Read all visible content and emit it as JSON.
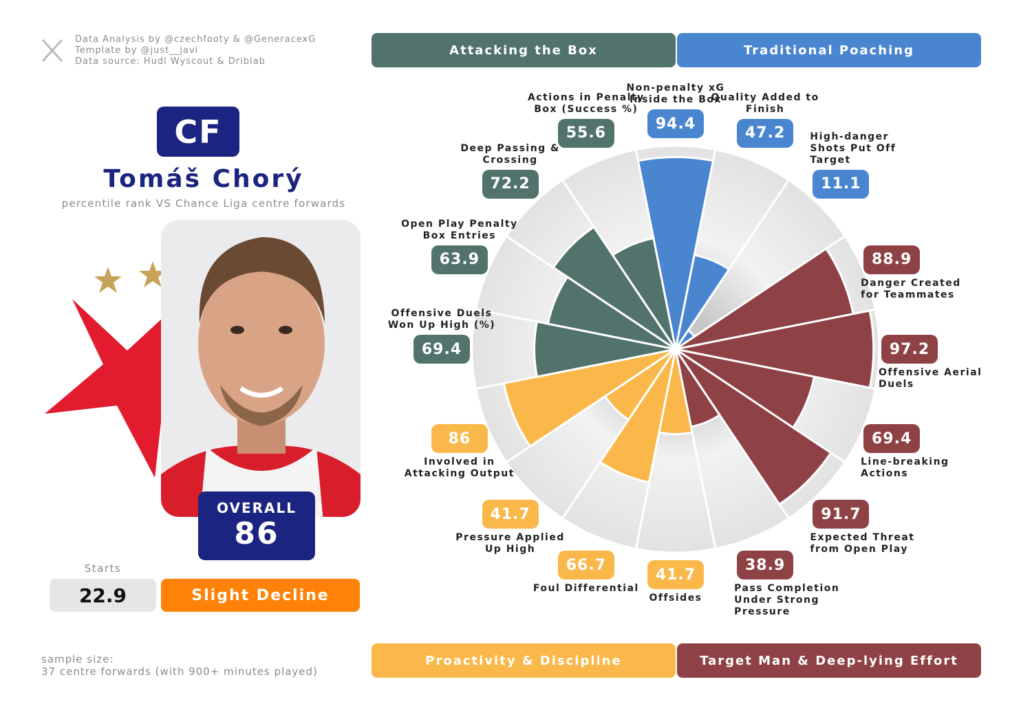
{
  "credits": [
    "Data Analysis by @czechfooty & @GeneracexG",
    "Template by @just__javi",
    "Data source: Hudl Wyscout & Driblab"
  ],
  "position": "CF",
  "player": "Tomáš Chorý",
  "subtitle": "percentile rank VS Chance Liga centre forwards",
  "overall_label": "OVERALL",
  "overall": 86,
  "starts_label": "Starts",
  "starts": 22.9,
  "trend": "Slight Decline",
  "sample_size": [
    "sample size:",
    "37 centre forwards (with 900+ minutes played)"
  ],
  "chart_data": {
    "type": "pizza",
    "rlim": [
      0,
      100
    ],
    "series": [
      {
        "name": "Traditional Poaching",
        "color": "#4a86d0",
        "categories": [
          "Non-penalty xG Inside the Box",
          "Quality Added to Finish",
          "High-danger Shots Put Off Target"
        ],
        "values": [
          94.4,
          47.2,
          11.1
        ]
      },
      {
        "name": "Target Man & Deep-lying Effort",
        "color": "#8e4245",
        "categories": [
          "Danger Created for Teammates",
          "Offensive Aerial Duels",
          "Line-breaking Actions",
          "Expected Threat from Open Play",
          "Pass Completion Under Strong Pressure"
        ],
        "values": [
          88.9,
          97.2,
          69.4,
          91.7,
          38.9
        ]
      },
      {
        "name": "Proactivity & Discipline",
        "color": "#fbb84a",
        "categories": [
          "Offsides",
          "Foul Differential",
          "Pressure Applied Up High",
          "Involved in Attacking Output"
        ],
        "values": [
          41.7,
          66.7,
          41.7,
          86
        ]
      },
      {
        "name": "Attacking the Box",
        "color": "#52726c",
        "categories": [
          "Offensive Duels Won Up High (%)",
          "Open Play Penalty Box Entries",
          "Deep Passing & Crossing",
          "Actions in Penalty Box (Success %)"
        ],
        "values": [
          69.4,
          63.9,
          72.2,
          55.6
        ]
      }
    ]
  }
}
